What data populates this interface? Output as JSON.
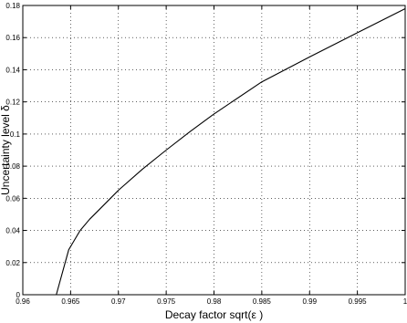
{
  "chart_data": {
    "type": "line",
    "title": "",
    "xlabel": "Decay factor sqrt(ε )",
    "ylabel": "Uncertainty level δ",
    "xlim": [
      0.96,
      1.0
    ],
    "ylim": [
      0,
      0.18
    ],
    "xticks": [
      0.96,
      0.965,
      0.97,
      0.975,
      0.98,
      0.985,
      0.99,
      0.995,
      1.0
    ],
    "xtick_labels": [
      "0.96",
      "0.965",
      "0.97",
      "0.975",
      "0.98",
      "0.985",
      "0.99",
      "0.995",
      "1"
    ],
    "yticks": [
      0,
      0.02,
      0.04,
      0.06,
      0.08,
      0.1,
      0.12,
      0.14,
      0.16,
      0.18
    ],
    "ytick_labels": [
      "0",
      "0.02",
      "0.04",
      "0.06",
      "0.08",
      "0.1",
      "0.12",
      "0.14",
      "0.16",
      "0.18"
    ],
    "grid": true,
    "series": [
      {
        "color": "#000000",
        "x": [
          0.9635,
          0.9648,
          0.9652,
          0.966,
          0.967,
          0.968,
          0.97,
          0.9725,
          0.975,
          0.9775,
          0.98,
          0.985,
          0.99,
          0.995,
          1.0
        ],
        "y": [
          0.0,
          0.028,
          0.032,
          0.04,
          0.047,
          0.053,
          0.065,
          0.078,
          0.09,
          0.1015,
          0.1125,
          0.1325,
          0.148,
          0.163,
          0.178
        ]
      }
    ]
  }
}
